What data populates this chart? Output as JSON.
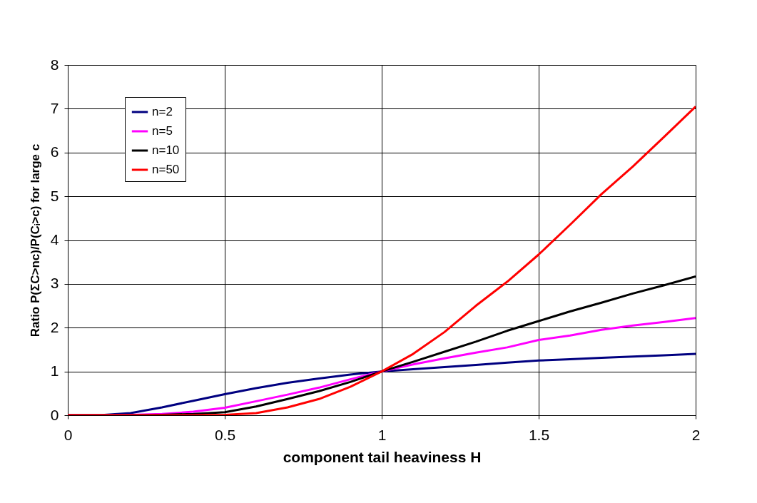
{
  "chart_data": {
    "type": "line",
    "xlabel": "component tail heaviness H",
    "ylabel": "Ratio P(ΣC>nc)/P(Cᵢ>c) for large c",
    "x": [
      0,
      0.1,
      0.2,
      0.3,
      0.4,
      0.5,
      0.6,
      0.7,
      0.8,
      0.9,
      1,
      1.1,
      1.2,
      1.3,
      1.4,
      1.5,
      1.6,
      1.7,
      1.8,
      1.9,
      2
    ],
    "series": [
      {
        "name": "n=2",
        "color": "#000080",
        "values": [
          0,
          0,
          0.05,
          0.18,
          0.33,
          0.48,
          0.62,
          0.74,
          0.84,
          0.93,
          1,
          1.05,
          1.1,
          1.15,
          1.2,
          1.25,
          1.28,
          1.31,
          1.34,
          1.37,
          1.4
        ]
      },
      {
        "name": "n=5",
        "color": "#ff00ff",
        "values": [
          0,
          0,
          0.01,
          0.03,
          0.08,
          0.17,
          0.32,
          0.47,
          0.63,
          0.82,
          1,
          1.16,
          1.3,
          1.43,
          1.55,
          1.72,
          1.82,
          1.95,
          2.05,
          2.13,
          2.22
        ]
      },
      {
        "name": "n=10",
        "color": "#000000",
        "values": [
          0,
          0,
          0,
          0.01,
          0.03,
          0.07,
          0.2,
          0.37,
          0.55,
          0.76,
          1,
          1.22,
          1.45,
          1.68,
          1.93,
          2.15,
          2.37,
          2.57,
          2.78,
          2.97,
          3.17
        ]
      },
      {
        "name": "n=50",
        "color": "#ff0000",
        "values": [
          0,
          0,
          0,
          0,
          0,
          0.01,
          0.05,
          0.18,
          0.37,
          0.65,
          1,
          1.4,
          1.9,
          2.5,
          3.05,
          3.67,
          4.35,
          5.05,
          5.68,
          6.36,
          7.05
        ]
      }
    ],
    "xlim": [
      0,
      2
    ],
    "xticks": [
      0,
      0.5,
      1,
      1.5,
      2
    ],
    "ylim": [
      0,
      8
    ],
    "yticks": [
      0,
      1,
      2,
      3,
      4,
      5,
      6,
      7,
      8
    ],
    "grid": true,
    "legend": "top left",
    "marker": "none",
    "line_style": "solid"
  }
}
